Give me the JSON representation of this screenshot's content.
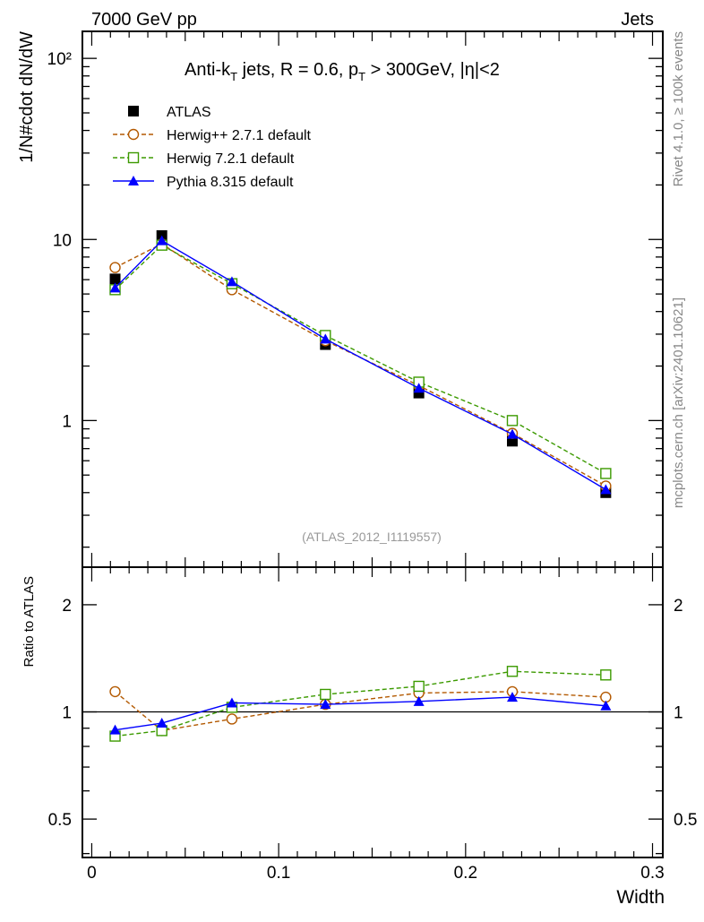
{
  "header": {
    "left": "7000 GeV pp",
    "right": "Jets"
  },
  "side_labels": {
    "rivet": "Rivet 4.1.0, ≥ 100k events",
    "mcplots": "mcplots.cern.ch [arXiv:2401.10621]"
  },
  "analysis_id": "(ATLAS_2012_I1119557)",
  "title_parts": [
    "Anti-k",
    "T",
    " jets, R = 0.6, p",
    "T",
    " > 300GeV, |η|<2"
  ],
  "colors": {
    "atlas": "#000000",
    "herwigpp": "#b35900",
    "herwig7": "#3c9a00",
    "pythia": "#0000ff"
  },
  "chart_data": [
    {
      "type": "line",
      "ylabel": "1/N#cdot dN/dW",
      "yscale": "log",
      "ylim": [
        0.155,
        141
      ],
      "xlim": [
        -0.005,
        0.3055
      ],
      "ytick_labels": [
        "10²",
        "10",
        "1"
      ],
      "ytick_values": [
        100,
        10,
        1
      ],
      "x": [
        0.0125,
        0.0375,
        0.075,
        0.125,
        0.175,
        0.225,
        0.275
      ],
      "series": [
        {
          "name": "ATLAS",
          "key": "atlas",
          "marker": "square-filled",
          "values": [
            6.05,
            10.5,
            5.6,
            2.63,
            1.42,
            0.77,
            0.4
          ]
        },
        {
          "name": "Herwig++ 2.7.1 default",
          "key": "herwigpp",
          "marker": "circle-open",
          "dashed": true,
          "values": [
            7.0,
            9.45,
            5.28,
            2.76,
            1.56,
            0.85,
            0.435
          ]
        },
        {
          "name": "Herwig 7.2.1 default",
          "key": "herwig7",
          "marker": "square-open",
          "dashed": true,
          "values": [
            5.28,
            9.3,
            5.7,
            2.95,
            1.63,
            1.0,
            0.51
          ]
        },
        {
          "name": "Pythia 8.315 default",
          "key": "pythia",
          "marker": "triangle-filled",
          "values": [
            5.4,
            9.85,
            5.85,
            2.82,
            1.51,
            0.84,
            0.416
          ]
        }
      ],
      "legend": "top-left"
    },
    {
      "type": "line",
      "ylabel": "Ratio to ATLAS",
      "xlabel": "Width",
      "yscale": "log",
      "ylim": [
        0.39,
        2.55
      ],
      "ytick_labels": [
        "2",
        "1",
        "0.5"
      ],
      "ytick_values": [
        2,
        1,
        0.5
      ],
      "xtick_labels": [
        "0",
        "0.1",
        "0.2",
        "0.3"
      ],
      "xtick_values": [
        0,
        0.1,
        0.2,
        0.3
      ],
      "x": [
        0.0125,
        0.0375,
        0.075,
        0.125,
        0.175,
        0.225,
        0.275
      ],
      "series": [
        {
          "name": "Herwig++ 2.7.1 default",
          "key": "herwigpp",
          "marker": "circle-open",
          "dashed": true,
          "values": [
            1.14,
            0.886,
            0.955,
            1.05,
            1.13,
            1.14,
            1.1
          ]
        },
        {
          "name": "Herwig 7.2.1 default",
          "key": "herwig7",
          "marker": "square-open",
          "dashed": true,
          "values": [
            0.855,
            0.886,
            1.03,
            1.12,
            1.18,
            1.3,
            1.27
          ]
        },
        {
          "name": "Pythia 8.315 default",
          "key": "pythia",
          "marker": "triangle-filled",
          "values": [
            0.89,
            0.93,
            1.06,
            1.05,
            1.07,
            1.1,
            1.04
          ]
        }
      ]
    }
  ]
}
